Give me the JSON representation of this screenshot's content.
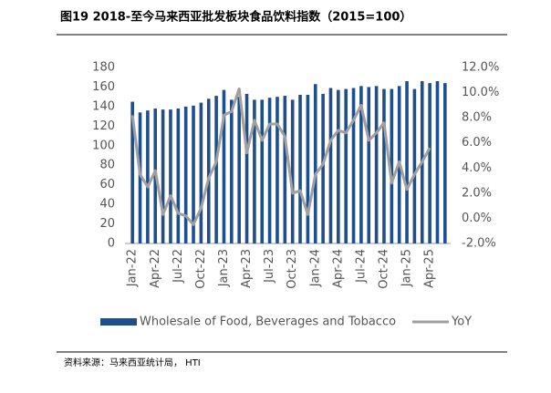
{
  "chart_data": {
    "type": "bar-line",
    "title": "图19 2018-至今马来西亚批发板块食品饮料指数（2015=100）",
    "source": "资料来源：马来西亚统计局， HTI",
    "categories": [
      "Jan-22",
      null,
      null,
      "Apr-22",
      null,
      null,
      "Jul-22",
      null,
      null,
      "Oct-22",
      null,
      null,
      "Jan-23",
      null,
      null,
      "Apr-23",
      null,
      null,
      "Jul-23",
      null,
      null,
      "Oct-23",
      null,
      null,
      "Jan-24",
      null,
      null,
      "Apr-24",
      null,
      null,
      "Jul-24",
      null,
      null,
      "Oct-24",
      null,
      null,
      "Jan-25",
      null,
      null,
      "Apr-25",
      null,
      null
    ],
    "series": [
      {
        "name": "Wholesale of Food, Beverages and Tobacco",
        "type": "bar",
        "color": "#1f4e8c",
        "values": [
          145,
          134,
          136,
          138,
          137,
          137,
          138,
          140,
          141,
          144,
          148,
          151,
          157,
          147,
          150,
          153,
          147,
          147,
          149,
          150,
          151,
          147,
          152,
          152,
          163,
          153,
          159,
          157,
          158,
          159,
          161,
          160,
          161,
          158,
          158,
          161,
          166,
          158,
          166,
          164,
          166,
          164
        ]
      },
      {
        "name": "YoY",
        "type": "line",
        "axis": "y2",
        "color": "#a0a0a0",
        "values": [
          8.2,
          3.5,
          2.5,
          3.8,
          0.3,
          1.8,
          0.4,
          0.2,
          -0.5,
          0.8,
          3.2,
          4.5,
          8.2,
          8.5,
          10.3,
          5.2,
          7.8,
          6.2,
          7.5,
          7.5,
          6.5,
          2.0,
          2.2,
          0.3,
          3.5,
          4.3,
          6.2,
          7.0,
          6.8,
          7.8,
          9.0,
          6.2,
          6.8,
          7.6,
          2.8,
          4.5,
          2.3,
          3.5,
          4.5,
          5.6,
          null,
          null
        ]
      }
    ],
    "ylim": [
      0,
      180
    ],
    "yticks": [
      0,
      20,
      40,
      60,
      80,
      100,
      120,
      140,
      160,
      180
    ],
    "y2lim": [
      -2,
      12
    ],
    "y2ticks": [
      {
        "value": -2,
        "label": "-2.0%"
      },
      {
        "value": 0,
        "label": "0.0%"
      },
      {
        "value": 2,
        "label": "2.0%"
      },
      {
        "value": 4,
        "label": "4.0%"
      },
      {
        "value": 6,
        "label": "6.0%"
      },
      {
        "value": 8,
        "label": "8.0%"
      },
      {
        "value": 10,
        "label": "10.0%"
      },
      {
        "value": 12,
        "label": "12.0%"
      }
    ],
    "legend": "bottom"
  }
}
